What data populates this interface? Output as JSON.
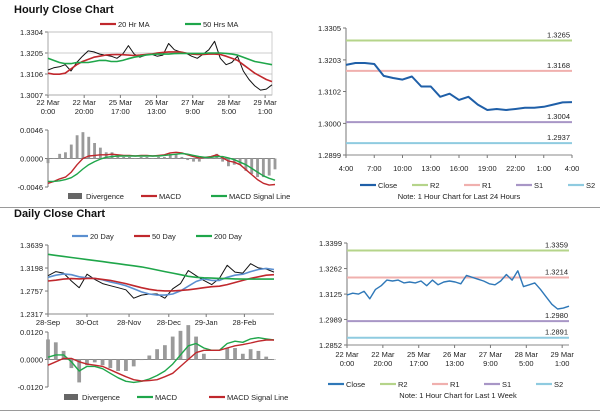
{
  "sections": {
    "hourly_title": "Hourly Close Chart",
    "daily_title": "Daily Close Chart"
  },
  "chart_data": [
    {
      "id": "hourly-price",
      "type": "line",
      "ylim": [
        1.3007,
        1.3304
      ],
      "yticks": [
        "1.3304",
        "1.3205",
        "1.3106",
        "1.3007"
      ],
      "grid": true,
      "xrange": [
        0,
        39
      ],
      "xticks": [
        {
          "at": 0,
          "label": [
            "22 Mar",
            "0:00"
          ]
        },
        {
          "at": 6.3,
          "label": [
            "22 Mar",
            "20:00"
          ]
        },
        {
          "at": 12.6,
          "label": [
            "25 Mar",
            "17:00"
          ]
        },
        {
          "at": 18.9,
          "label": [
            "26 Mar",
            "13:00"
          ]
        },
        {
          "at": 25.2,
          "label": [
            "27 Mar",
            "9:00"
          ]
        },
        {
          "at": 31.5,
          "label": [
            "28 Mar",
            "5:00"
          ]
        },
        {
          "at": 37.8,
          "label": [
            "29 Mar",
            "1:00"
          ]
        }
      ],
      "series": [
        {
          "name": "Close",
          "color": "#111111",
          "width": 1,
          "legend": false,
          "values": [
            1.3125,
            1.3135,
            1.314,
            1.315,
            1.312,
            1.316,
            1.319,
            1.3215,
            1.321,
            1.32,
            1.3195,
            1.319,
            1.318,
            1.32,
            1.324,
            1.32,
            1.3185,
            1.3195,
            1.32,
            1.319,
            1.3195,
            1.325,
            1.322,
            1.321,
            1.3205,
            1.319,
            1.318,
            1.32,
            1.322,
            1.326,
            1.318,
            1.315,
            1.316,
            1.319,
            1.312,
            1.308,
            1.305,
            1.303,
            1.3035,
            1.3055
          ]
        },
        {
          "name": "20 Hr MA",
          "color": "#c0282d",
          "width": 1.6,
          "legend": true,
          "values": [
            1.311,
            1.3105,
            1.3105,
            1.311,
            1.313,
            1.315,
            1.3165,
            1.3175,
            1.3185,
            1.319,
            1.3195,
            1.3197,
            1.3198,
            1.3197,
            1.3195,
            1.3193,
            1.3195,
            1.3198,
            1.32,
            1.3205,
            1.3208,
            1.321,
            1.321,
            1.321,
            1.3205,
            1.32,
            1.3198,
            1.3198,
            1.32,
            1.32,
            1.3198,
            1.319,
            1.318,
            1.317,
            1.315,
            1.313,
            1.311,
            1.3095,
            1.308,
            1.307
          ]
        },
        {
          "name": "50 Hrs MA",
          "color": "#1fa64a",
          "width": 1.6,
          "legend": true,
          "values": [
            1.318,
            1.317,
            1.316,
            1.3155,
            1.3155,
            1.316,
            1.316,
            1.316,
            1.3165,
            1.317,
            1.317,
            1.3165,
            1.3165,
            1.317,
            1.3178,
            1.3185,
            1.319,
            1.3195,
            1.3198,
            1.32,
            1.32,
            1.32,
            1.3202,
            1.3203,
            1.3203,
            1.3203,
            1.3203,
            1.3203,
            1.3205,
            1.3205,
            1.3205,
            1.3203,
            1.32,
            1.3195,
            1.3185,
            1.3175,
            1.3165,
            1.316,
            1.3155,
            1.315
          ]
        }
      ]
    },
    {
      "id": "hourly-macd",
      "type": "line",
      "ylim": [
        -0.0046,
        0.0046
      ],
      "yticks": [
        "0.0046",
        "0.0000",
        "-0.0046"
      ],
      "xrange": [
        0,
        39
      ],
      "divergence_from": [
        "MACD",
        "MACD Signal Line"
      ],
      "divergence_label": "Divergence",
      "series": [
        {
          "name": "MACD",
          "color": "#c0282d",
          "width": 1.4,
          "legend": true,
          "values": [
            -0.004,
            -0.0037,
            -0.0033,
            -0.003,
            -0.0022,
            -0.001,
            0.0,
            0.0004,
            0.0005,
            0.0006,
            0.0006,
            0.0007,
            0.0006,
            0.0005,
            0.0005,
            0.0004,
            0.0005,
            0.0005,
            0.0004,
            0.0005,
            0.0006,
            0.0009,
            0.001,
            0.0009,
            0.0006,
            0.0003,
            0.0001,
            0.0002,
            0.0003,
            0.0006,
            0.0001,
            -0.0004,
            -0.0006,
            -0.001,
            -0.0018,
            -0.0026,
            -0.0034,
            -0.004,
            -0.0043,
            -0.0042
          ]
        },
        {
          "name": "MACD Signal Line",
          "color": "#1fa64a",
          "width": 1.4,
          "legend": true,
          "values": [
            -0.0037,
            -0.0037,
            -0.0036,
            -0.0034,
            -0.0031,
            -0.0025,
            -0.0017,
            -0.001,
            -0.0005,
            -0.0001,
            0.0002,
            0.0003,
            0.0004,
            0.0004,
            0.0004,
            0.0004,
            0.0004,
            0.0004,
            0.0004,
            0.0004,
            0.0005,
            0.0006,
            0.0007,
            0.0008,
            0.0007,
            0.0005,
            0.0003,
            0.0002,
            0.0002,
            0.0003,
            0.0003,
            0.0001,
            -0.0002,
            -0.0006,
            -0.001,
            -0.0016,
            -0.0022,
            -0.0028,
            -0.0032,
            -0.0035
          ]
        }
      ]
    },
    {
      "id": "hourly-levels",
      "type": "line",
      "ylim": [
        1.2899,
        1.3305
      ],
      "yticks": [
        "1.3305",
        "1.3203",
        "1.3102",
        "1.3000",
        "1.2899"
      ],
      "xrange": [
        0,
        24
      ],
      "xticks": [
        {
          "at": 0,
          "label": [
            "4:00"
          ]
        },
        {
          "at": 3,
          "label": [
            "7:00"
          ]
        },
        {
          "at": 6,
          "label": [
            "10:00"
          ]
        },
        {
          "at": 9,
          "label": [
            "13:00"
          ]
        },
        {
          "at": 12,
          "label": [
            "16:00"
          ]
        },
        {
          "at": 15,
          "label": [
            "19:00"
          ]
        },
        {
          "at": 18,
          "label": [
            "22:00"
          ]
        },
        {
          "at": 21,
          "label": [
            "1:00"
          ]
        },
        {
          "at": 24,
          "label": [
            "4:00"
          ]
        }
      ],
      "series": [
        {
          "name": "Close",
          "color": "#1f5fa8",
          "width": 2,
          "legend": true,
          "values": [
            1.3187,
            1.3193,
            1.3193,
            1.319,
            1.3152,
            1.3145,
            1.314,
            1.315,
            1.3118,
            1.3118,
            1.3085,
            1.3095,
            1.3075,
            1.3085,
            1.306,
            1.3043,
            1.3046,
            1.3043,
            1.3046,
            1.305,
            1.305,
            1.3053,
            1.306,
            1.3067,
            1.3068
          ]
        }
      ],
      "levels": [
        {
          "name": "R2",
          "value": 1.3265,
          "label": "1.3265",
          "color": "#b5d48a"
        },
        {
          "name": "R1",
          "value": 1.3168,
          "label": "1.3168",
          "color": "#f0b0ae"
        },
        {
          "name": "S1",
          "value": 1.3004,
          "label": "1.3004",
          "color": "#a896c6"
        },
        {
          "name": "S2",
          "value": 1.2937,
          "label": "1.2937",
          "color": "#8fcbe0"
        }
      ],
      "note": "Note: 1 Hour Chart for Last 24 Hours"
    },
    {
      "id": "daily-price",
      "type": "line",
      "ylim": [
        1.2317,
        1.3639
      ],
      "yticks": [
        "1.3639",
        "1.3198",
        "1.2757",
        "1.2317"
      ],
      "xrange": [
        0,
        29
      ],
      "xticks": [
        {
          "at": 0,
          "label": [
            "28-Sep"
          ]
        },
        {
          "at": 5,
          "label": [
            "30-Oct"
          ]
        },
        {
          "at": 10.4,
          "label": [
            "28-Nov"
          ]
        },
        {
          "at": 15.5,
          "label": [
            "28-Dec"
          ]
        },
        {
          "at": 20.3,
          "label": [
            "29-Jan"
          ]
        },
        {
          "at": 25.2,
          "label": [
            "28-Feb"
          ]
        }
      ],
      "series": [
        {
          "name": "Close",
          "color": "#111111",
          "width": 1,
          "legend": false,
          "values": [
            1.305,
            1.313,
            1.31,
            1.295,
            1.282,
            1.308,
            1.298,
            1.29,
            1.286,
            1.282,
            1.278,
            1.262,
            1.268,
            1.27,
            1.27,
            1.262,
            1.28,
            1.29,
            1.315,
            1.305,
            1.296,
            1.288,
            1.3,
            1.325,
            1.312,
            1.31,
            1.328,
            1.32,
            1.318,
            1.312
          ]
        },
        {
          "name": "20 Day",
          "color": "#5b8fd0",
          "width": 1.6,
          "legend": true,
          "values": [
            1.302,
            1.306,
            1.3085,
            1.307,
            1.303,
            1.301,
            1.3,
            1.297,
            1.293,
            1.29,
            1.286,
            1.28,
            1.274,
            1.27,
            1.268,
            1.268,
            1.27,
            1.276,
            1.285,
            1.294,
            1.299,
            1.296,
            1.296,
            1.302,
            1.306,
            1.308,
            1.313,
            1.317,
            1.319,
            1.317
          ]
        },
        {
          "name": "50 Day",
          "color": "#c0282d",
          "width": 1.6,
          "legend": true,
          "values": [
            1.295,
            1.2965,
            1.2985,
            1.2995,
            1.299,
            1.3,
            1.3,
            1.298,
            1.296,
            1.293,
            1.29,
            1.286,
            1.282,
            1.279,
            1.277,
            1.276,
            1.276,
            1.277,
            1.278,
            1.28,
            1.282,
            1.284,
            1.285,
            1.288,
            1.292,
            1.296,
            1.3,
            1.303,
            1.306,
            1.307
          ]
        },
        {
          "name": "200 Day",
          "color": "#1fa64a",
          "width": 1.6,
          "legend": true,
          "values": [
            1.346,
            1.344,
            1.342,
            1.34,
            1.338,
            1.336,
            1.334,
            1.332,
            1.33,
            1.328,
            1.326,
            1.324,
            1.322,
            1.319,
            1.316,
            1.313,
            1.31,
            1.307,
            1.304,
            1.302,
            1.301,
            1.3005,
            1.3,
            1.2995,
            1.299,
            1.2985,
            1.2985,
            1.2985,
            1.2985,
            1.2985
          ]
        }
      ]
    },
    {
      "id": "daily-macd",
      "type": "line",
      "ylim": [
        -0.012,
        0.012
      ],
      "yticks": [
        "0.0120",
        "0.0000",
        "-0.0120"
      ],
      "xrange": [
        0,
        29
      ],
      "divergence_from": [
        "MACD",
        "MACD Signal Line"
      ],
      "divergence_label": "Divergence",
      "series": [
        {
          "name": "MACD",
          "color": "#1fa64a",
          "width": 1.4,
          "legend": true,
          "values": [
            0.001,
            0.002,
            0.002,
            -0.001,
            -0.005,
            -0.003,
            -0.003,
            -0.004,
            -0.006,
            -0.008,
            -0.0095,
            -0.01,
            -0.0095,
            -0.0085,
            -0.007,
            -0.005,
            -0.002,
            0.002,
            0.006,
            0.007,
            0.005,
            0.004,
            0.004,
            0.007,
            0.008,
            0.0075,
            0.009,
            0.0095,
            0.009,
            0.0085
          ]
        },
        {
          "name": "MACD Signal Line",
          "color": "#c0282d",
          "width": 1.4,
          "legend": true,
          "values": [
            -0.0025,
            -0.001,
            0.0005,
            0.0005,
            -0.001,
            -0.002,
            -0.0025,
            -0.003,
            -0.0045,
            -0.006,
            -0.0075,
            -0.0088,
            -0.0094,
            -0.0092,
            -0.0088,
            -0.0075,
            -0.006,
            -0.003,
            0.0,
            0.003,
            0.004,
            0.004,
            0.004,
            0.005,
            0.006,
            0.0065,
            0.0072,
            0.008,
            0.0085,
            0.0085
          ]
        }
      ]
    },
    {
      "id": "weekly-levels",
      "type": "line",
      "ylim": [
        1.2852,
        1.3399
      ],
      "yticks": [
        "1.3399",
        "1.3262",
        "1.3125",
        "1.2989",
        "1.2852"
      ],
      "xrange": [
        0,
        39
      ],
      "xticks": [
        {
          "at": 0,
          "label": [
            "22 Mar",
            "0:00"
          ]
        },
        {
          "at": 6.3,
          "label": [
            "22 Mar",
            "20:00"
          ]
        },
        {
          "at": 12.6,
          "label": [
            "25 Mar",
            "17:00"
          ]
        },
        {
          "at": 18.9,
          "label": [
            "26 Mar",
            "13:00"
          ]
        },
        {
          "at": 25.2,
          "label": [
            "27 Mar",
            "9:00"
          ]
        },
        {
          "at": 31.5,
          "label": [
            "28 Mar",
            "5:00"
          ]
        },
        {
          "at": 37.8,
          "label": [
            "29 Mar",
            "1:00"
          ]
        }
      ],
      "series": [
        {
          "name": "Close",
          "color": "#2f78b8",
          "width": 1.4,
          "legend": true,
          "values": [
            1.312,
            1.313,
            1.3125,
            1.314,
            1.31,
            1.315,
            1.317,
            1.32,
            1.3195,
            1.32,
            1.3185,
            1.319,
            1.3185,
            1.3195,
            1.317,
            1.32,
            1.3175,
            1.319,
            1.3195,
            1.319,
            1.318,
            1.3225,
            1.3215,
            1.3205,
            1.3195,
            1.318,
            1.3175,
            1.3195,
            1.323,
            1.32,
            1.325,
            1.3165,
            1.3175,
            1.3185,
            1.315,
            1.311,
            1.307,
            1.3045,
            1.305,
            1.306
          ]
        }
      ],
      "levels": [
        {
          "name": "R2",
          "value": 1.3359,
          "label": "1.3359",
          "color": "#b5d48a"
        },
        {
          "name": "R1",
          "value": 1.3214,
          "label": "1.3214",
          "color": "#f0b0ae"
        },
        {
          "name": "S1",
          "value": 1.298,
          "label": "1.2980",
          "color": "#a896c6"
        },
        {
          "name": "S2",
          "value": 1.2891,
          "label": "1.2891",
          "color": "#8fcbe0"
        }
      ],
      "note": "Note: 1 Hour Chart for Last 1 Week"
    }
  ]
}
